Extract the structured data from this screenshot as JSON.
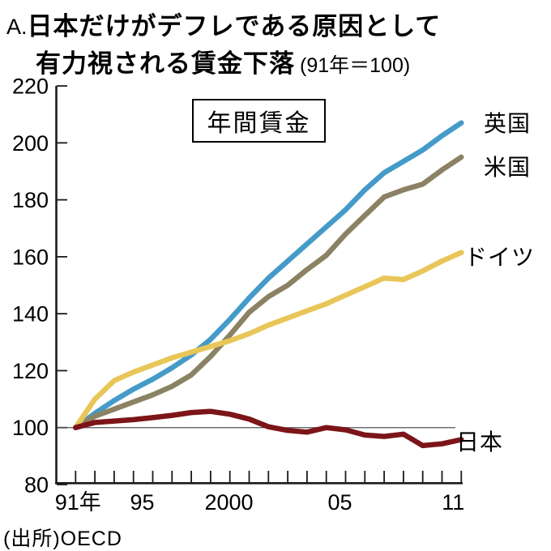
{
  "title": {
    "prefix": "A.",
    "line1": "日本だけがデフレである原因として",
    "line2": "有力視される賃金下落",
    "note": "(91年＝100)"
  },
  "annotation_box": "年間賃金",
  "source": "(出所)OECD",
  "colors": {
    "uk": "#459bc8",
    "us": "#8a8263",
    "germany": "#e8c658",
    "japan": "#7c1518",
    "axis": "#1a1a1a",
    "reference_line": "#555555",
    "text": "#000000"
  },
  "chart_data": {
    "type": "line",
    "title": "年間賃金",
    "subtitle": "日本だけがデフレである原因として有力視される賃金下落",
    "index_note": "91年=100",
    "xlabel": "",
    "ylabel": "",
    "ylim": [
      80,
      220
    ],
    "grid": false,
    "reference_line": 100,
    "x": [
      1991,
      1992,
      1993,
      1994,
      1995,
      1996,
      1997,
      1998,
      1999,
      2000,
      2001,
      2002,
      2003,
      2004,
      2005,
      2006,
      2007,
      2008,
      2009,
      2010,
      2011
    ],
    "x_tick_labels": [
      {
        "label": "91年",
        "year": 1991
      },
      {
        "label": "95",
        "year": 1995
      },
      {
        "label": "2000",
        "year": 2000
      },
      {
        "label": "05",
        "year": 2005
      },
      {
        "label": "11",
        "year": 2011
      }
    ],
    "y_ticks": [
      80,
      100,
      120,
      140,
      160,
      180,
      200,
      220
    ],
    "legend_position": "line-end-labels",
    "series": [
      {
        "name": "英国",
        "key": "uk",
        "values": [
          100,
          105,
          109.5,
          113.5,
          117,
          121,
          125.5,
          131,
          138,
          145.5,
          152.5,
          158.5,
          164.5,
          170.5,
          176.5,
          183.5,
          189.5,
          193.5,
          197.5,
          202.5,
          207
        ]
      },
      {
        "name": "米国",
        "key": "us",
        "values": [
          100,
          104,
          106.5,
          109,
          111.5,
          114.5,
          118.5,
          125,
          132.5,
          140.5,
          146,
          150,
          155.5,
          160.5,
          168,
          174.5,
          181,
          183.5,
          185.5,
          190.5,
          195
        ]
      },
      {
        "name": "ドイツ",
        "key": "germany",
        "values": [
          100,
          110,
          116.5,
          119.5,
          122,
          124.5,
          126.5,
          128.5,
          130.5,
          133,
          136,
          138.5,
          141,
          143.5,
          146.5,
          149.5,
          152.5,
          152,
          155,
          158.5,
          161.5
        ]
      },
      {
        "name": "日本",
        "key": "japan",
        "values": [
          100,
          101.8,
          102.3,
          102.8,
          103.5,
          104.3,
          105.3,
          105.7,
          104.7,
          103,
          100.3,
          99,
          98.4,
          100,
          99.2,
          97.4,
          96.9,
          97.7,
          93.7,
          94.3,
          95.8
        ]
      }
    ]
  }
}
